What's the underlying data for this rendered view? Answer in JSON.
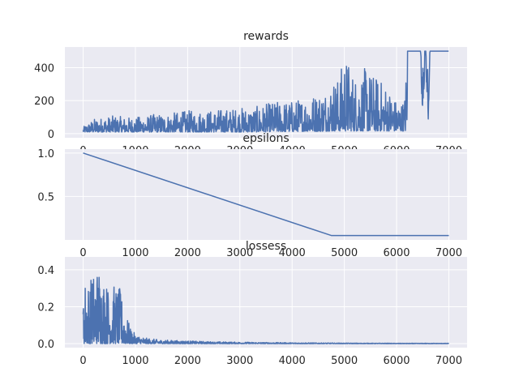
{
  "style": {
    "background": "#ffffff",
    "axes_facecolor": "#eaeaf2",
    "grid_color": "#ffffff",
    "line_color": "#4c72b0",
    "text_color": "#262626"
  },
  "chart_data": [
    {
      "type": "line",
      "title": "rewards",
      "xlabel": "",
      "ylabel": "",
      "xlim": [
        -350,
        7350
      ],
      "ylim": [
        -25,
        525
      ],
      "xticks": [
        0,
        1000,
        2000,
        3000,
        4000,
        5000,
        6000,
        7000
      ],
      "yticks": [
        0,
        200,
        400
      ],
      "grid": true,
      "series": [
        {
          "values_description": "noisy",
          "x": [
            0,
            200,
            400,
            600,
            800,
            1000,
            1200,
            1400,
            1600,
            1800,
            2000,
            2200,
            2400,
            2600,
            2800,
            3000,
            3200,
            3400,
            3600,
            3800,
            4000,
            4200,
            4400,
            4600,
            4800,
            4900,
            5000,
            5200,
            5400,
            5600,
            5800,
            6000,
            6100,
            6150,
            6200,
            6210,
            6300,
            6400,
            6450,
            6500,
            6550,
            6600,
            6650,
            6700,
            6800,
            7000
          ],
          "y_min": [
            10,
            10,
            10,
            10,
            10,
            10,
            10,
            10,
            10,
            10,
            10,
            10,
            10,
            10,
            10,
            10,
            10,
            10,
            12,
            12,
            12,
            14,
            14,
            14,
            16,
            16,
            16,
            16,
            16,
            16,
            16,
            16,
            16,
            16,
            16,
            500,
            500,
            500,
            500,
            40,
            500,
            30,
            500,
            500,
            500,
            500
          ],
          "y_max": [
            40,
            90,
            100,
            110,
            100,
            100,
            110,
            120,
            120,
            130,
            140,
            140,
            140,
            150,
            150,
            160,
            160,
            170,
            190,
            200,
            200,
            220,
            240,
            260,
            340,
            340,
            500,
            350,
            400,
            350,
            300,
            200,
            200,
            200,
            500,
            500,
            500,
            500,
            500,
            500,
            500,
            500,
            500,
            500,
            500,
            500
          ]
        }
      ]
    },
    {
      "type": "line",
      "title": "epsilons",
      "xlabel": "",
      "ylabel": "",
      "xlim": [
        -350,
        7350
      ],
      "ylim": [
        0.0,
        1.045
      ],
      "xticks": [
        0,
        1000,
        2000,
        3000,
        4000,
        5000,
        6000,
        7000
      ],
      "yticks": [
        0.5,
        1.0
      ],
      "ytick_labels": [
        "0.5",
        "1.0"
      ],
      "grid": true,
      "series": [
        {
          "x": [
            0,
            4750,
            7000
          ],
          "y": [
            1.0,
            0.05,
            0.05
          ]
        }
      ]
    },
    {
      "type": "line",
      "title": "lossess",
      "xlabel": "",
      "ylabel": "",
      "xlim": [
        -350,
        7350
      ],
      "ylim": [
        -0.022,
        0.47
      ],
      "xticks": [
        0,
        1000,
        2000,
        3000,
        4000,
        5000,
        6000,
        7000
      ],
      "yticks": [
        0.0,
        0.2,
        0.4
      ],
      "ytick_labels": [
        "0.0",
        "0.2",
        "0.4"
      ],
      "grid": true,
      "series": [
        {
          "values_description": "noisy decaying",
          "x": [
            0,
            50,
            100,
            200,
            300,
            400,
            500,
            600,
            700,
            800,
            900,
            1000,
            1200,
            1500,
            2000,
            2500,
            3000,
            4000,
            5000,
            6000,
            7000
          ],
          "y_max": [
            0.33,
            0.36,
            0.34,
            0.39,
            0.44,
            0.36,
            0.3,
            0.32,
            0.3,
            0.18,
            0.09,
            0.05,
            0.03,
            0.02,
            0.015,
            0.01,
            0.008,
            0.005,
            0.003,
            0.002,
            0.002
          ]
        }
      ]
    }
  ]
}
